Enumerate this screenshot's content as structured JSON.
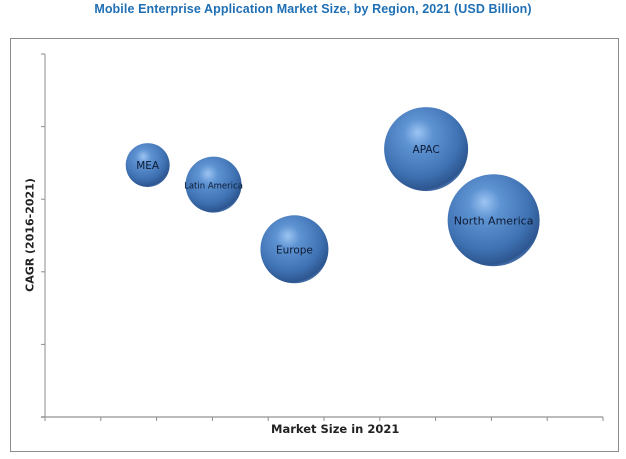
{
  "chart_data": {
    "type": "bubble",
    "title": "Mobile Enterprise Application Market Size, by Region, 2021 (USD Billion)",
    "xlabel": "Market Size in 2021",
    "ylabel": "CAGR (2016-2021)",
    "xlim": [
      0,
      10
    ],
    "ylim": [
      0,
      5
    ],
    "x_tick_count": 11,
    "y_tick_count": 6,
    "grid": false,
    "bubble_color": "#4a7ebf",
    "series": [
      {
        "name": "MEA",
        "x": 1.84,
        "y": 3.47,
        "size": 22
      },
      {
        "name": "Latin America",
        "x": 3.02,
        "y": 3.2,
        "size": 28
      },
      {
        "name": "Europe",
        "x": 4.47,
        "y": 2.31,
        "size": 34
      },
      {
        "name": "APAC",
        "x": 6.83,
        "y": 3.69,
        "size": 42
      },
      {
        "name": "North America",
        "x": 8.04,
        "y": 2.71,
        "size": 46
      }
    ]
  }
}
